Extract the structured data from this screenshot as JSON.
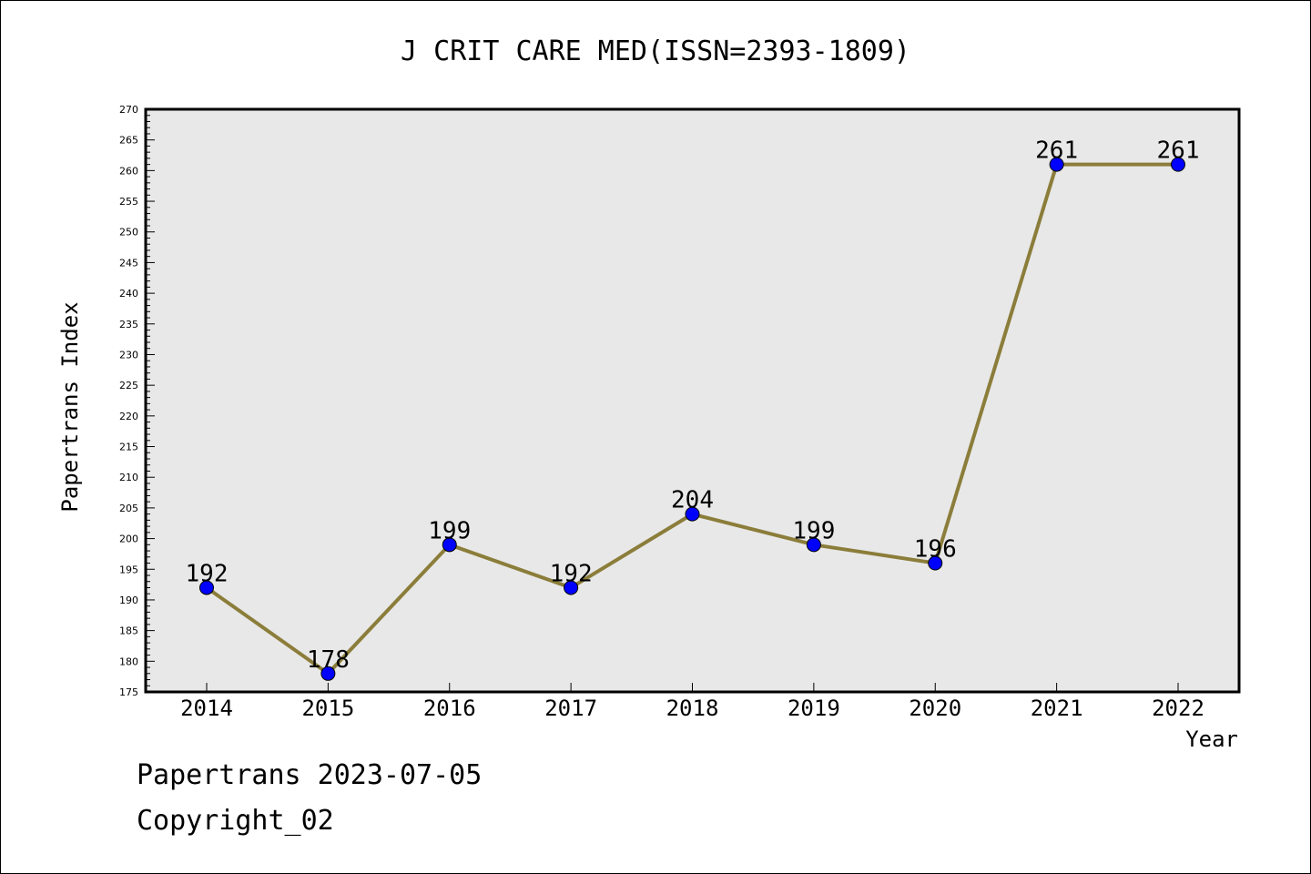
{
  "chart_data": {
    "type": "line",
    "title": "J CRIT CARE MED(ISSN=2393-1809)",
    "xlabel": "Year",
    "ylabel": "Papertrans Index",
    "x": [
      "2014",
      "2015",
      "2016",
      "2017",
      "2018",
      "2019",
      "2020",
      "2021",
      "2022"
    ],
    "series": [
      {
        "values": [
          192,
          178,
          199,
          192,
          204,
          199,
          196,
          261,
          261
        ]
      }
    ],
    "data_labels": [
      "192",
      "178",
      "199",
      "192",
      "204",
      "199",
      "196",
      "261",
      "261"
    ],
    "ylim": [
      175,
      270
    ],
    "y_ticks": [
      "175",
      "180",
      "185",
      "190",
      "195",
      "200",
      "205",
      "210",
      "215",
      "220",
      "225",
      "230",
      "235",
      "240",
      "245",
      "250",
      "255",
      "260",
      "265",
      "270"
    ],
    "grid": false,
    "legend": "none",
    "colors": {
      "line": "#8b7d3a",
      "marker": "#0000ff",
      "plot_bg": "#e8e8e8"
    }
  },
  "footer": {
    "line1": "Papertrans 2023-07-05",
    "line2": "Copyright_02"
  }
}
